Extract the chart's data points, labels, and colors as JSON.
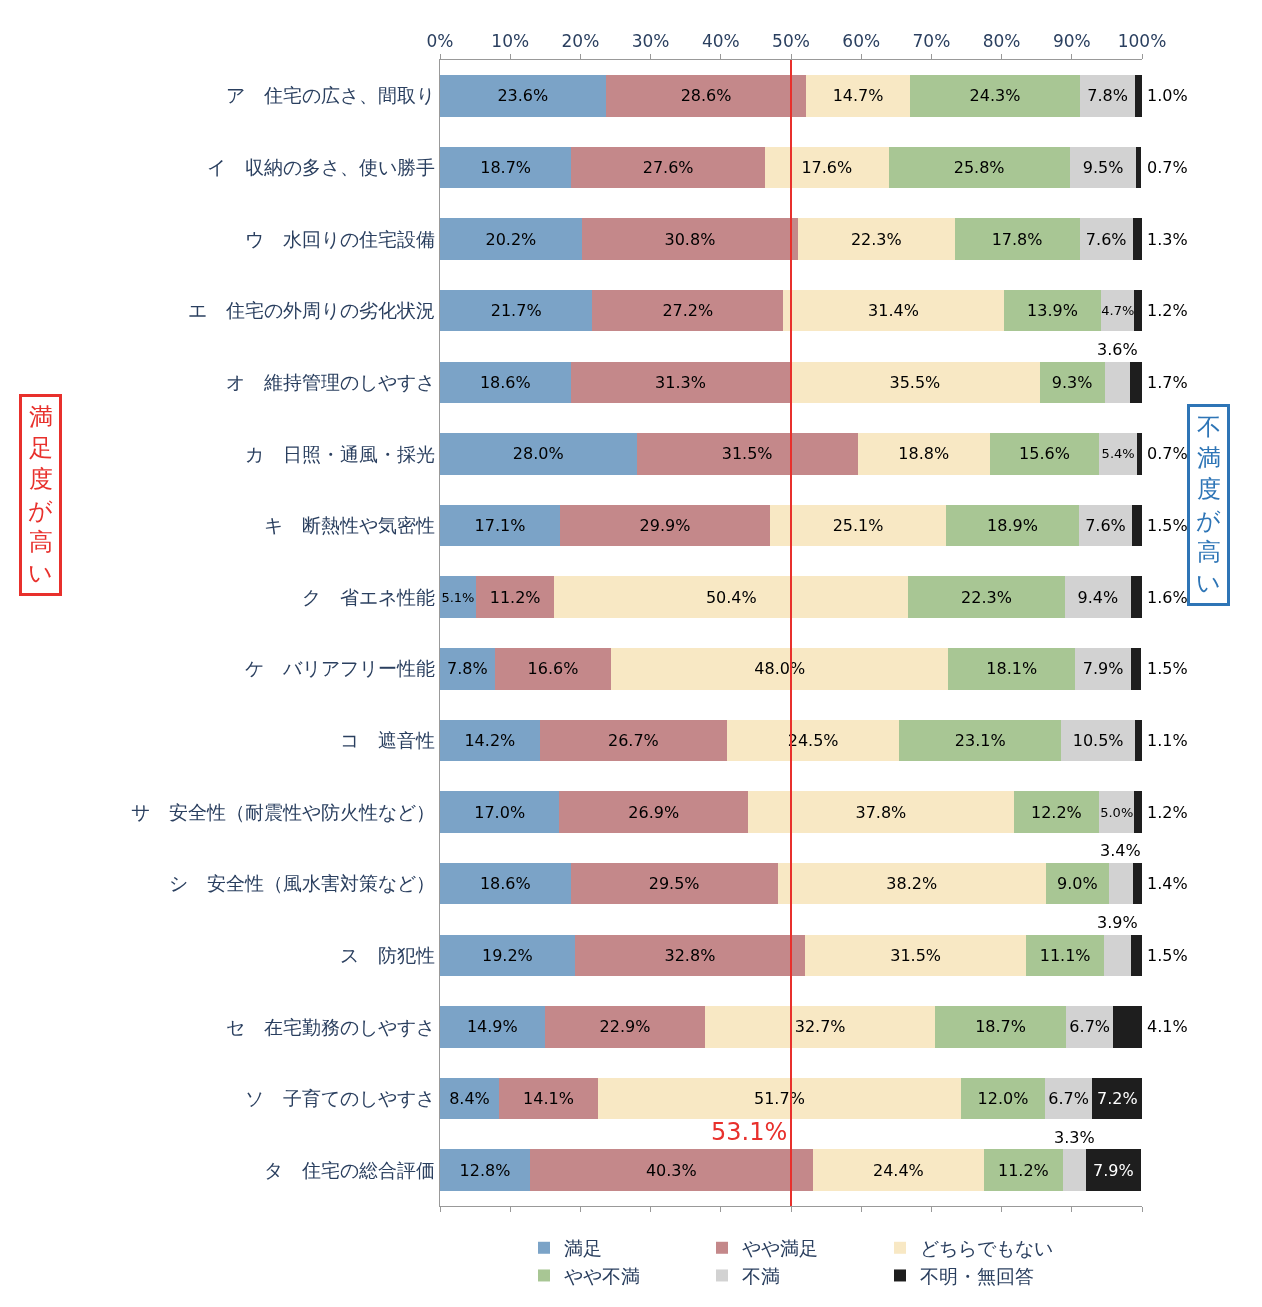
{
  "chart_data": {
    "type": "bar",
    "orientation": "horizontal",
    "stacked": true,
    "categories": [
      "ア　住宅の広さ、間取り",
      "イ　収納の多さ、使い勝手",
      "ウ　水回りの住宅設備",
      "エ　住宅の外周りの劣化状況",
      "オ　維持管理のしやすさ",
      "カ　日照・通風・採光",
      "キ　断熱性や気密性",
      "ク　省エネ性能",
      "ケ　バリアフリー性能",
      "コ　遮音性",
      "サ　安全性（耐震性や防火性など）",
      "シ　安全性（風水害対策など）",
      "ス　防犯性",
      "セ　在宅勤務のしやすさ",
      "ソ　子育てのしやすさ",
      "タ　住宅の総合評価"
    ],
    "series": [
      {
        "name": "満足",
        "color": "#7ba3c7",
        "values": [
          23.6,
          18.7,
          20.2,
          21.7,
          18.6,
          28.0,
          17.1,
          5.1,
          7.8,
          14.2,
          17.0,
          18.6,
          19.2,
          14.9,
          8.4,
          12.8
        ],
        "value_labels": [
          "23.6%",
          "18.7%",
          "20.2%",
          "21.7%",
          "18.6%",
          "28.0%",
          "17.1%",
          "5.1%",
          "7.8%",
          "14.2%",
          "17.0%",
          "18.6%",
          "19.2%",
          "14.9%",
          "8.4%",
          "12.8%"
        ]
      },
      {
        "name": "やや満足",
        "color": "#c4888a",
        "values": [
          28.6,
          27.6,
          30.8,
          27.2,
          31.3,
          31.5,
          29.9,
          11.2,
          16.6,
          26.7,
          26.9,
          29.5,
          32.8,
          22.9,
          14.1,
          40.3
        ],
        "value_labels": [
          "28.6%",
          "27.6%",
          "30.8%",
          "27.2%",
          "31.3%",
          "31.5%",
          "29.9%",
          "11.2%",
          "16.6%",
          "26.7%",
          "26.9%",
          "29.5%",
          "32.8%",
          "22.9%",
          "14.1%",
          "40.3%"
        ]
      },
      {
        "name": "どちらでもない",
        "color": "#f8e8c4",
        "values": [
          14.7,
          17.6,
          22.3,
          31.4,
          35.5,
          18.8,
          25.1,
          50.4,
          48.0,
          24.5,
          37.8,
          38.2,
          31.5,
          32.7,
          51.7,
          24.4
        ],
        "value_labels": [
          "14.7%",
          "17.6%",
          "22.3%",
          "31.4%",
          "35.5%",
          "18.8%",
          "25.1%",
          "50.4%",
          "48.0%",
          "24.5%",
          "37.8%",
          "38.2%",
          "31.5%",
          "32.7%",
          "51.7%",
          "24.4%"
        ]
      },
      {
        "name": "やや不満",
        "color": "#a8c694",
        "values": [
          24.3,
          25.8,
          17.8,
          13.9,
          9.3,
          15.6,
          18.9,
          22.3,
          18.1,
          23.1,
          12.2,
          9.0,
          11.1,
          18.7,
          12.0,
          11.2
        ],
        "value_labels": [
          "24.3%",
          "25.8%",
          "17.8%",
          "13.9%",
          "9.3%",
          "15.6%",
          "18.9%",
          "22.3%",
          "18.1%",
          "23.1%",
          "12.2%",
          "9.0%",
          "11.1%",
          "18.7%",
          "12.0%",
          "11.2%"
        ]
      },
      {
        "name": "不満",
        "color": "#d2d2d2",
        "values": [
          7.8,
          9.5,
          7.6,
          4.7,
          3.6,
          5.4,
          7.6,
          9.4,
          7.9,
          10.5,
          5.0,
          3.4,
          3.9,
          6.7,
          6.7,
          3.3
        ],
        "value_labels": [
          "7.8%",
          "9.5%",
          "7.6%",
          "4.7%",
          "3.6%",
          "5.4%",
          "7.6%",
          "9.4%",
          "7.9%",
          "10.5%",
          "5.0%",
          "3.4%",
          "3.9%",
          "6.7%",
          "6.7%",
          "3.3%"
        ]
      },
      {
        "name": "不明・無回答",
        "color": "#1e1e1e",
        "values": [
          1.0,
          0.7,
          1.3,
          1.2,
          1.7,
          0.7,
          1.5,
          1.6,
          1.5,
          1.1,
          1.2,
          1.4,
          1.5,
          4.1,
          7.2,
          7.9
        ],
        "value_labels": [
          "1.0%",
          "0.7%",
          "1.3%",
          "1.2%",
          "1.7%",
          "0.7%",
          "1.5%",
          "1.6%",
          "1.5%",
          "1.1%",
          "1.2%",
          "1.4%",
          "1.5%",
          "4.1%",
          "7.2%",
          "7.9%"
        ]
      }
    ],
    "xlim": [
      0,
      100
    ],
    "xticks": [
      {
        "value": 0,
        "label": "0%"
      },
      {
        "value": 10,
        "label": "10%"
      },
      {
        "value": 20,
        "label": "20%"
      },
      {
        "value": 30,
        "label": "30%"
      },
      {
        "value": 40,
        "label": "40%"
      },
      {
        "value": 50,
        "label": "50%"
      },
      {
        "value": 60,
        "label": "60%"
      },
      {
        "value": 70,
        "label": "70%"
      },
      {
        "value": 80,
        "label": "80%"
      },
      {
        "value": 90,
        "label": "90%"
      },
      {
        "value": 100,
        "label": "100%"
      }
    ],
    "ref_lines": [
      {
        "axis": "x",
        "value": 50,
        "color": "#e8302c"
      }
    ],
    "annotations": [
      "53.1%",
      "満足度が高い",
      "不満度が高い"
    ],
    "legend": "bottom"
  }
}
